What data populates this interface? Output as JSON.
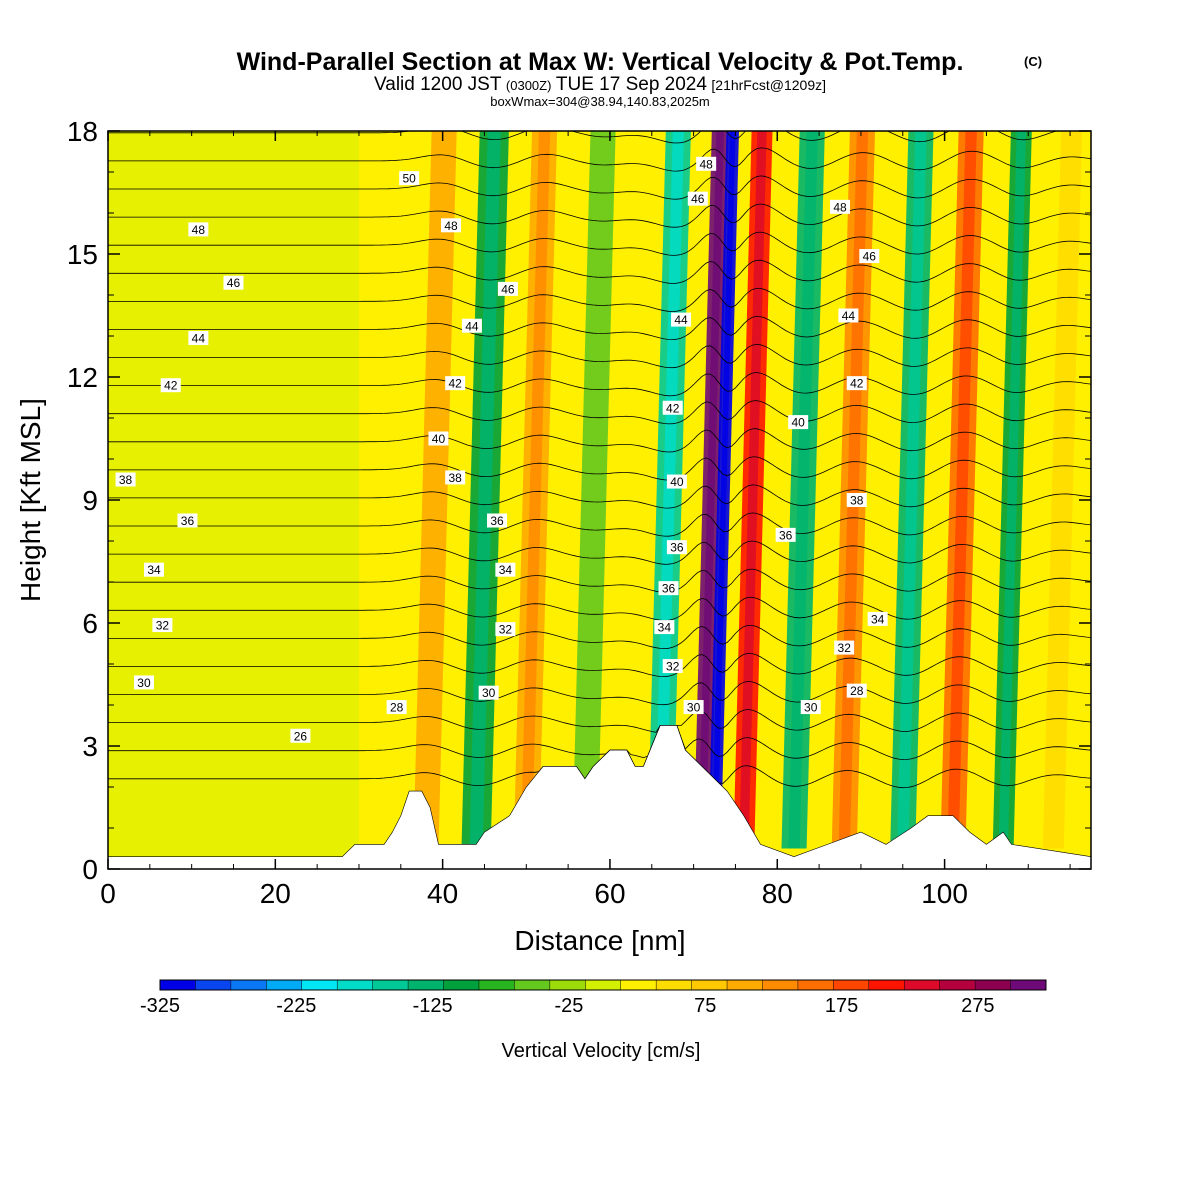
{
  "chart_data": {
    "type": "heatmap",
    "title": "Wind-Parallel Section at Max W: Vertical Velocity & Pot.Temp.",
    "title_mark": "(C)",
    "subtitle_valid": "Valid 1200 JST",
    "subtitle_utc": "(0300Z)",
    "subtitle_date": "TUE 17 Sep 2024",
    "subtitle_fcst": "[21hrFcst@1209z]",
    "subtitle_box": "boxWmax=304@38.94,140.83,2025m",
    "xlabel": "Distance [nm]",
    "ylabel": "Height [Kft MSL]",
    "xlim": [
      0,
      117.5
    ],
    "ylim": [
      0,
      18
    ],
    "xticks": [
      0,
      20,
      40,
      60,
      80,
      100
    ],
    "yticks": [
      0,
      3,
      6,
      9,
      12,
      15,
      18
    ],
    "colorbar": {
      "label": "Vertical Velocity [cm/s]",
      "tick_labels": [
        "-325",
        "-225",
        "-125",
        "-25",
        "75",
        "175",
        "275"
      ],
      "min": -325,
      "max": 325,
      "colors": [
        "#0000e6",
        "#0a46f0",
        "#0a78f5",
        "#00aaf5",
        "#00e6f5",
        "#00dcc8",
        "#00c896",
        "#00b46e",
        "#00a03c",
        "#28b41e",
        "#64c81e",
        "#9bdc0a",
        "#d2f000",
        "#fff000",
        "#ffdc00",
        "#ffc800",
        "#ffaa00",
        "#ff8c00",
        "#ff6e00",
        "#ff4600",
        "#ff1400",
        "#dc0a28",
        "#b4003c",
        "#8c0050",
        "#6e0a78"
      ]
    },
    "wave_bands": [
      {
        "center_x": 38,
        "width_nm": 3,
        "vv": 100
      },
      {
        "center_x": 44,
        "width_nm": 3.5,
        "vv": -110
      },
      {
        "center_x": 50,
        "width_nm": 3,
        "vv": 110
      },
      {
        "center_x": 57,
        "width_nm": 3,
        "vv": -60
      },
      {
        "center_x": 66,
        "width_nm": 3,
        "vv": -150
      },
      {
        "center_x": 71,
        "width_nm": 2,
        "vv": 300
      },
      {
        "center_x": 72.5,
        "width_nm": 1.5,
        "vv": -325
      },
      {
        "center_x": 76,
        "width_nm": 2.5,
        "vv": 200
      },
      {
        "center_x": 82,
        "width_nm": 3,
        "vv": -120
      },
      {
        "center_x": 88,
        "width_nm": 3,
        "vv": 130
      },
      {
        "center_x": 95,
        "width_nm": 3,
        "vv": -140
      },
      {
        "center_x": 101,
        "width_nm": 3,
        "vv": 150
      },
      {
        "center_x": 107,
        "width_nm": 2.5,
        "vv": -110
      },
      {
        "center_x": 113,
        "width_nm": 2.5,
        "vv": 60
      }
    ],
    "terrain": [
      [
        0,
        0.3
      ],
      [
        28,
        0.3
      ],
      [
        29.5,
        0.6
      ],
      [
        33,
        0.6
      ],
      [
        34,
        0.9
      ],
      [
        35,
        1.3
      ],
      [
        36,
        1.9
      ],
      [
        37.5,
        1.9
      ],
      [
        38.5,
        1.5
      ],
      [
        39.5,
        0.6
      ],
      [
        44,
        0.6
      ],
      [
        45,
        0.9
      ],
      [
        48,
        1.3
      ],
      [
        50,
        2.0
      ],
      [
        52,
        2.5
      ],
      [
        56,
        2.5
      ],
      [
        57,
        2.2
      ],
      [
        58,
        2.5
      ],
      [
        60,
        2.9
      ],
      [
        62,
        2.9
      ],
      [
        63,
        2.5
      ],
      [
        64,
        2.5
      ],
      [
        66,
        3.5
      ],
      [
        68,
        3.5
      ],
      [
        69,
        2.9
      ],
      [
        71,
        2.5
      ],
      [
        74,
        1.9
      ],
      [
        76,
        1.3
      ],
      [
        78,
        0.6
      ],
      [
        82,
        0.3
      ],
      [
        86,
        0.6
      ],
      [
        90,
        0.9
      ],
      [
        93,
        0.6
      ],
      [
        96,
        1.0
      ],
      [
        98,
        1.3
      ],
      [
        101,
        1.3
      ],
      [
        103,
        0.9
      ],
      [
        105,
        0.6
      ],
      [
        107,
        0.9
      ],
      [
        108,
        0.6
      ],
      [
        117.5,
        0.3
      ]
    ],
    "isentropes": [
      24,
      25,
      26,
      27,
      28,
      29,
      30,
      31,
      32,
      33,
      34,
      35,
      36,
      37,
      38,
      39,
      40,
      41,
      42,
      43,
      44,
      45,
      46,
      47,
      48,
      49,
      50,
      51,
      52
    ],
    "contour_labels": [
      {
        "text": "50",
        "x": 36.0,
        "y": 16.85
      },
      {
        "text": "48",
        "x": 10.8,
        "y": 15.6
      },
      {
        "text": "48",
        "x": 41.0,
        "y": 15.7
      },
      {
        "text": "48",
        "x": 87.5,
        "y": 16.15
      },
      {
        "text": "48",
        "x": 71.5,
        "y": 17.2
      },
      {
        "text": "46",
        "x": 15.0,
        "y": 14.3
      },
      {
        "text": "46",
        "x": 47.8,
        "y": 14.15
      },
      {
        "text": "46",
        "x": 70.5,
        "y": 16.35
      },
      {
        "text": "46",
        "x": 91.0,
        "y": 14.95
      },
      {
        "text": "44",
        "x": 10.8,
        "y": 12.95
      },
      {
        "text": "44",
        "x": 43.5,
        "y": 13.25
      },
      {
        "text": "44",
        "x": 68.5,
        "y": 13.4
      },
      {
        "text": "44",
        "x": 88.5,
        "y": 13.5
      },
      {
        "text": "42",
        "x": 7.5,
        "y": 11.8
      },
      {
        "text": "42",
        "x": 41.5,
        "y": 11.85
      },
      {
        "text": "42",
        "x": 67.5,
        "y": 11.25
      },
      {
        "text": "42",
        "x": 89.5,
        "y": 11.85
      },
      {
        "text": "40",
        "x": 39.5,
        "y": 10.5
      },
      {
        "text": "40",
        "x": 68.0,
        "y": 9.45
      },
      {
        "text": "40",
        "x": 82.5,
        "y": 10.9
      },
      {
        "text": "38",
        "x": 2.1,
        "y": 9.5
      },
      {
        "text": "38",
        "x": 41.5,
        "y": 9.55
      },
      {
        "text": "38",
        "x": 89.5,
        "y": 9.0
      },
      {
        "text": "36",
        "x": 9.5,
        "y": 8.5
      },
      {
        "text": "36",
        "x": 46.5,
        "y": 8.5
      },
      {
        "text": "36",
        "x": 68.0,
        "y": 7.85
      },
      {
        "text": "36",
        "x": 81.0,
        "y": 8.15
      },
      {
        "text": "36",
        "x": 67.0,
        "y": 6.85
      },
      {
        "text": "34",
        "x": 5.5,
        "y": 7.3
      },
      {
        "text": "34",
        "x": 47.5,
        "y": 7.3
      },
      {
        "text": "34",
        "x": 66.5,
        "y": 5.9
      },
      {
        "text": "34",
        "x": 92.0,
        "y": 6.1
      },
      {
        "text": "32",
        "x": 6.5,
        "y": 5.95
      },
      {
        "text": "32",
        "x": 47.5,
        "y": 5.85
      },
      {
        "text": "32",
        "x": 67.5,
        "y": 4.95
      },
      {
        "text": "32",
        "x": 88.0,
        "y": 5.4
      },
      {
        "text": "30",
        "x": 4.3,
        "y": 4.55
      },
      {
        "text": "30",
        "x": 45.5,
        "y": 4.3
      },
      {
        "text": "30",
        "x": 70.0,
        "y": 3.95
      },
      {
        "text": "30",
        "x": 84.0,
        "y": 3.95
      },
      {
        "text": "28",
        "x": 34.5,
        "y": 3.95
      },
      {
        "text": "28",
        "x": 89.5,
        "y": 4.35
      },
      {
        "text": "26",
        "x": 23.0,
        "y": 3.25
      }
    ]
  }
}
